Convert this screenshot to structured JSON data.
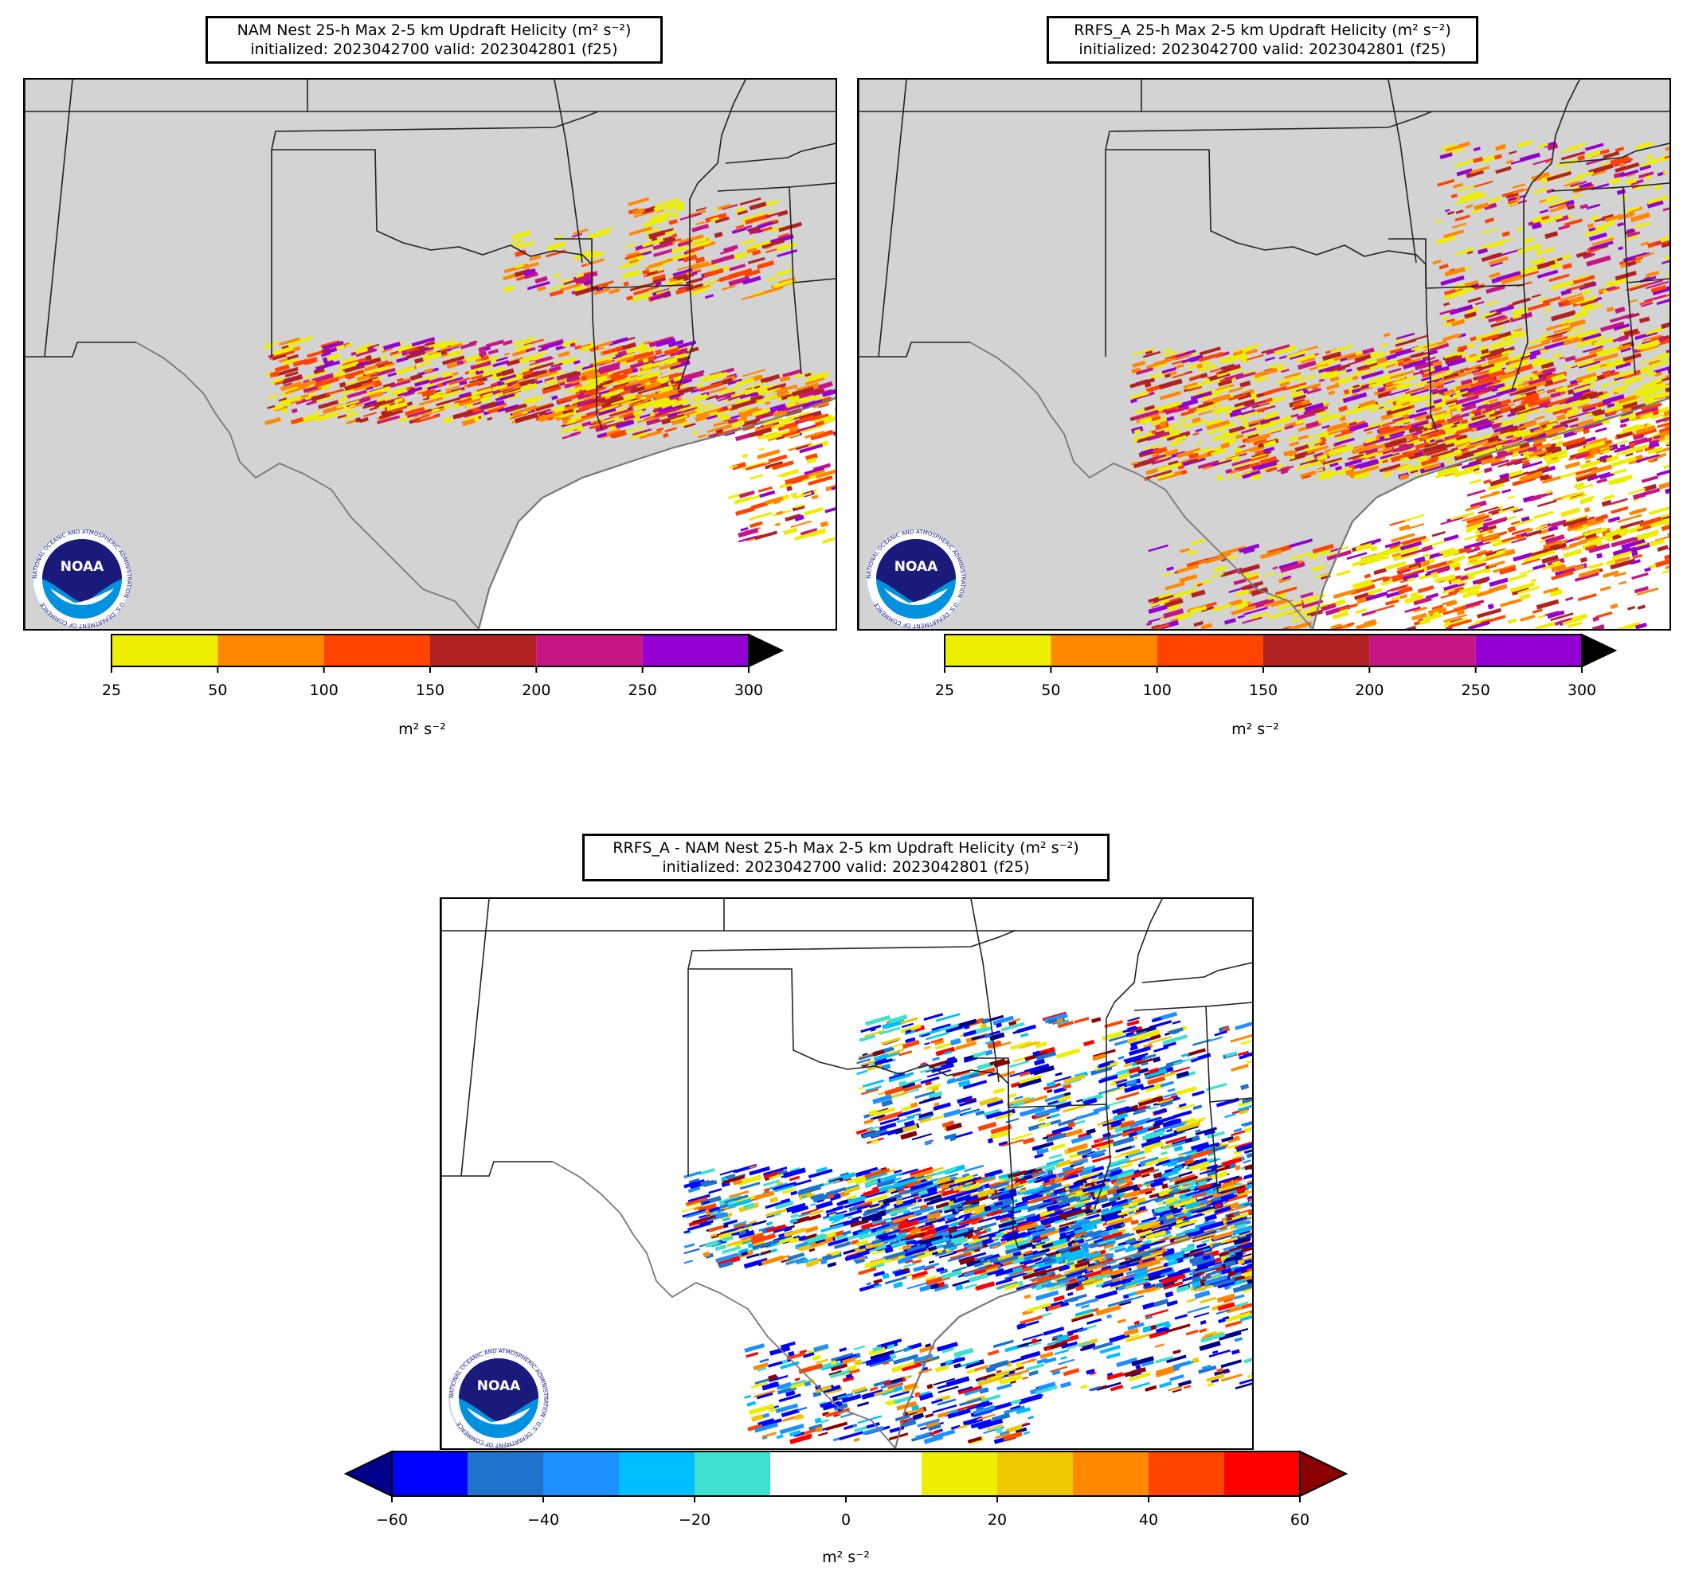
{
  "panels": [
    {
      "id": "nam",
      "title_line1": "NAM Nest 25-h Max 2-5 km Updraft Helicity (m² s⁻²)",
      "title_line2": "initialized: 2023042700 valid: 2023042801 (f25)",
      "colorbar": {
        "ticks": [
          "25",
          "50",
          "100",
          "150",
          "200",
          "250",
          "300"
        ],
        "colors": [
          "#eeee00",
          "#ff8800",
          "#ff4400",
          "#b22222",
          "#c71585",
          "#9400d3"
        ],
        "extend_color": "#000000",
        "units": "m² s⁻²"
      }
    },
    {
      "id": "rrfs",
      "title_line1": "RRFS_A 25-h Max 2-5 km Updraft Helicity (m² s⁻²)",
      "title_line2": "initialized: 2023042700 valid: 2023042801 (f25)",
      "colorbar": {
        "ticks": [
          "25",
          "50",
          "100",
          "150",
          "200",
          "250",
          "300"
        ],
        "colors": [
          "#eeee00",
          "#ff8800",
          "#ff4400",
          "#b22222",
          "#c71585",
          "#9400d3"
        ],
        "extend_color": "#000000",
        "units": "m² s⁻²"
      }
    },
    {
      "id": "diff",
      "title_line1": "RRFS_A - NAM Nest 25-h Max 2-5 km Updraft Helicity (m² s⁻²)",
      "title_line2": "initialized: 2023042700 valid: 2023042801 (f25)",
      "colorbar": {
        "ticks": [
          "−60",
          "−40",
          "−20",
          "0",
          "20",
          "40",
          "60"
        ],
        "colors": [
          "#0000ff",
          "#1e73cd",
          "#1e90ff",
          "#00bfff",
          "#40e0d0",
          "#ffffff",
          "#ffffff",
          "#eeee00",
          "#f0c800",
          "#ff8800",
          "#ff4400",
          "#ff0000"
        ],
        "extend_low_color": "#00008b",
        "extend_high_color": "#8b0000",
        "units": "m² s⁻²"
      }
    }
  ],
  "logo": {
    "name": "NOAA",
    "ring_text": "NATIONAL OCEANIC AND ATMOSPHERIC ADMINISTRATION · U.S. DEPARTMENT OF COMMERCE"
  },
  "colors": {
    "land": "#d3d3d3",
    "water": "#ffffff",
    "borders": "#222222",
    "coast": "#777777"
  }
}
